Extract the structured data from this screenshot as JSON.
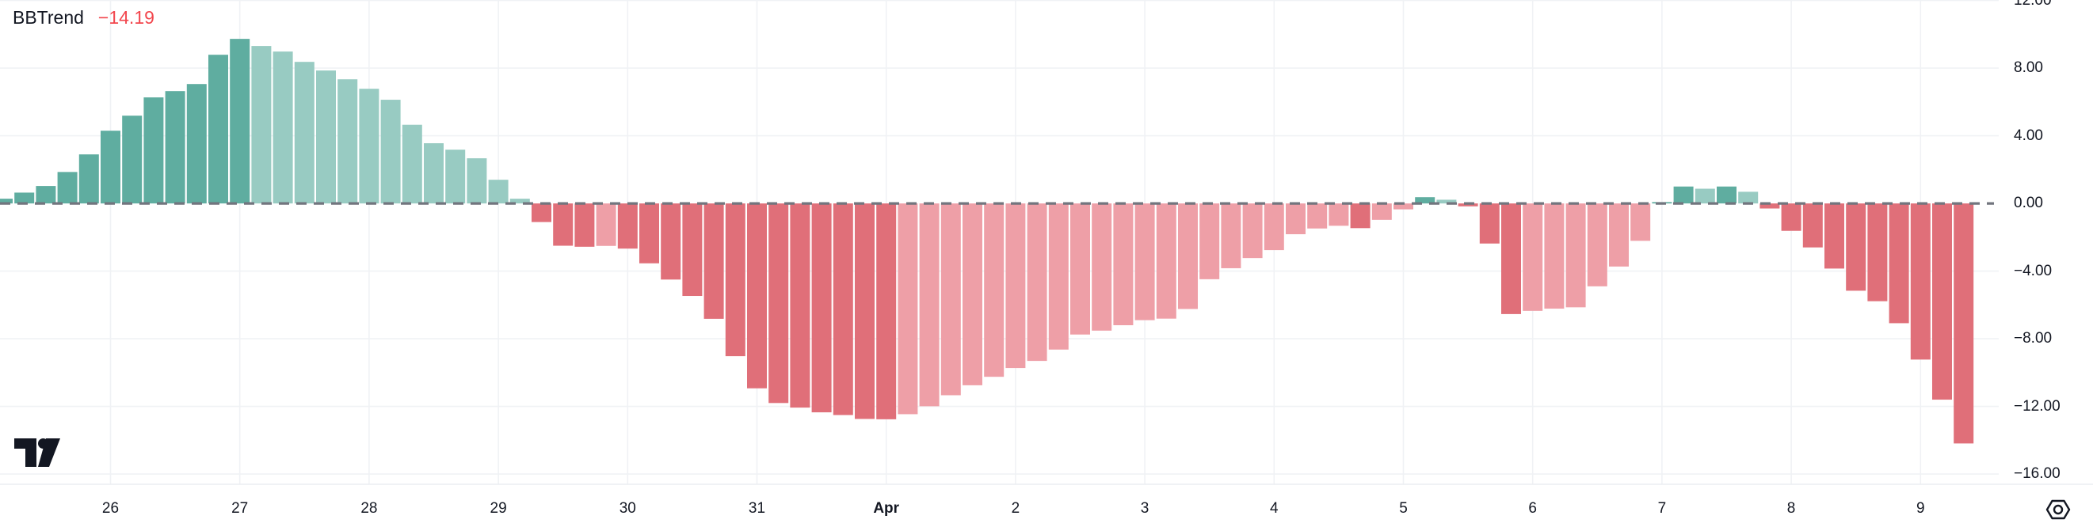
{
  "indicator": {
    "name": "BBTrend",
    "value": "−14.19"
  },
  "colors": {
    "teal_dark": "#5FADA0",
    "teal_light": "#98CBC2",
    "red_dark": "#E06F79",
    "red_light": "#EE9FA7",
    "value_color": "#F2464D",
    "text": "#131722",
    "grid": "#F0F2F5",
    "zero_line": "#72757E",
    "axis_border": "#ECEEF2"
  },
  "chart_data": {
    "type": "bar",
    "title": "BBTrend",
    "current_value": -14.19,
    "legend_position": "top-left",
    "grid": true,
    "ylim": [
      -17.1,
      12.6
    ],
    "y_axis": {
      "ticks": [
        {
          "v": 12,
          "label": "12.00"
        },
        {
          "v": 8,
          "label": "8.00"
        },
        {
          "v": 4,
          "label": "4.00"
        },
        {
          "v": 0,
          "label": "0.00"
        },
        {
          "v": -4,
          "label": "−4.00"
        },
        {
          "v": -8,
          "label": "−8.00"
        },
        {
          "v": -12,
          "label": "−12.00"
        },
        {
          "v": -16,
          "label": "−16.00"
        }
      ]
    },
    "x_axis": {
      "labels": [
        {
          "t": "26"
        },
        {
          "t": "27"
        },
        {
          "t": "28"
        },
        {
          "t": "29"
        },
        {
          "t": "30"
        },
        {
          "t": "31"
        },
        {
          "t": "Apr",
          "bold": true
        },
        {
          "t": "2"
        },
        {
          "t": "3"
        },
        {
          "t": "4"
        },
        {
          "t": "5"
        },
        {
          "t": "6"
        },
        {
          "t": "7"
        },
        {
          "t": "8"
        },
        {
          "t": "9"
        }
      ]
    },
    "values": [
      0.28,
      0.64,
      1.03,
      1.86,
      2.9,
      4.3,
      5.19,
      6.27,
      6.64,
      7.06,
      8.79,
      9.73,
      9.31,
      8.98,
      8.37,
      7.86,
      7.34,
      6.78,
      6.13,
      4.65,
      3.56,
      3.18,
      2.67,
      1.4,
      0.28,
      -1.1,
      -2.5,
      -2.56,
      -2.51,
      -2.67,
      -3.54,
      -4.5,
      -5.47,
      -6.82,
      -9.03,
      -10.93,
      -11.8,
      -12.07,
      -12.35,
      -12.51,
      -12.74,
      -12.76,
      -12.46,
      -11.99,
      -11.34,
      -10.75,
      -10.25,
      -9.73,
      -9.31,
      -8.64,
      -7.75,
      -7.52,
      -7.2,
      -6.9,
      -6.81,
      -6.24,
      -4.48,
      -3.83,
      -3.23,
      -2.76,
      -1.82,
      -1.48,
      -1.32,
      -1.46,
      -0.97,
      -0.35,
      0.37,
      0.22,
      -0.17,
      -2.37,
      -6.54,
      -6.35,
      -6.22,
      -6.14,
      -4.9,
      -3.73,
      -2.21,
      0.08,
      1.0,
      0.87,
      1.0,
      0.69,
      -0.3,
      -1.62,
      -2.6,
      -3.85,
      -5.16,
      -5.78,
      -7.08,
      -9.23,
      -11.6,
      -14.19
    ],
    "bar_color_rule": "positive bars teal (darker when rising), negative bars red (darker when falling)"
  }
}
